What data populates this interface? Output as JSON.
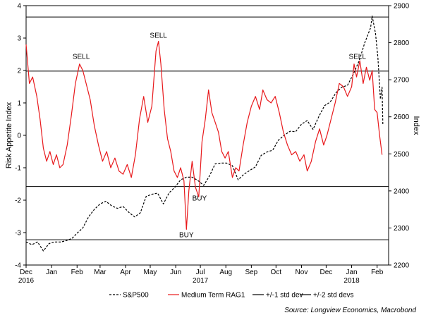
{
  "chart_data": {
    "type": "line",
    "title": "",
    "left_axis": {
      "label": "Risk Appetite Index",
      "min": -4,
      "max": 4,
      "ticks": [
        -4,
        -3,
        -2,
        -1,
        0,
        1,
        2,
        3,
        4
      ]
    },
    "right_axis": {
      "label": "Index",
      "min": 2200,
      "max": 2900,
      "ticks": [
        2200,
        2300,
        2400,
        2500,
        2600,
        2700,
        2800,
        2900
      ]
    },
    "x_axis": {
      "start": "2016-12-01",
      "end": "2018-02-15",
      "ticks": [
        {
          "date": "2016-12-01",
          "label": "Dec",
          "year": "2016"
        },
        {
          "date": "2017-01-01",
          "label": "Jan",
          "year": ""
        },
        {
          "date": "2017-02-01",
          "label": "Feb",
          "year": ""
        },
        {
          "date": "2017-03-01",
          "label": "Mar",
          "year": ""
        },
        {
          "date": "2017-04-01",
          "label": "Apr",
          "year": ""
        },
        {
          "date": "2017-05-01",
          "label": "May",
          "year": ""
        },
        {
          "date": "2017-06-01",
          "label": "Jun",
          "year": ""
        },
        {
          "date": "2017-07-01",
          "label": "Jul",
          "year": "2017"
        },
        {
          "date": "2017-08-01",
          "label": "Aug",
          "year": ""
        },
        {
          "date": "2017-09-01",
          "label": "Sep",
          "year": ""
        },
        {
          "date": "2017-10-01",
          "label": "Oct",
          "year": ""
        },
        {
          "date": "2017-11-01",
          "label": "Nov",
          "year": ""
        },
        {
          "date": "2017-12-01",
          "label": "Dec",
          "year": ""
        },
        {
          "date": "2018-01-01",
          "label": "Jan",
          "year": "2018"
        },
        {
          "date": "2018-02-01",
          "label": "Feb",
          "year": ""
        }
      ]
    },
    "reference_lines": [
      {
        "value": 3.65,
        "series": "+/-2 std devs"
      },
      {
        "value": 1.98,
        "series": "+/-1 std dev"
      },
      {
        "value": -1.58,
        "series": "+/-1 std dev"
      },
      {
        "value": -3.22,
        "series": "+/-2 std devs"
      }
    ],
    "series": [
      {
        "name": "S&P500",
        "axis": "right",
        "color": "#000000",
        "style": "dashed",
        "points": [
          [
            "2016-12-01",
            2262
          ],
          [
            "2016-12-08",
            2255
          ],
          [
            "2016-12-15",
            2262
          ],
          [
            "2016-12-22",
            2238
          ],
          [
            "2016-12-29",
            2258
          ],
          [
            "2017-01-05",
            2262
          ],
          [
            "2017-01-12",
            2262
          ],
          [
            "2017-01-19",
            2266
          ],
          [
            "2017-01-26",
            2272
          ],
          [
            "2017-02-01",
            2286
          ],
          [
            "2017-02-08",
            2300
          ],
          [
            "2017-02-15",
            2330
          ],
          [
            "2017-02-22",
            2350
          ],
          [
            "2017-03-01",
            2365
          ],
          [
            "2017-03-08",
            2372
          ],
          [
            "2017-03-15",
            2360
          ],
          [
            "2017-03-22",
            2353
          ],
          [
            "2017-03-29",
            2358
          ],
          [
            "2017-04-05",
            2342
          ],
          [
            "2017-04-12",
            2330
          ],
          [
            "2017-04-19",
            2341
          ],
          [
            "2017-04-26",
            2385
          ],
          [
            "2017-05-03",
            2391
          ],
          [
            "2017-05-10",
            2394
          ],
          [
            "2017-05-17",
            2365
          ],
          [
            "2017-05-24",
            2395
          ],
          [
            "2017-05-31",
            2410
          ],
          [
            "2017-06-07",
            2430
          ],
          [
            "2017-06-14",
            2437
          ],
          [
            "2017-06-21",
            2437
          ],
          [
            "2017-06-28",
            2428
          ],
          [
            "2017-07-05",
            2415
          ],
          [
            "2017-07-12",
            2440
          ],
          [
            "2017-07-19",
            2473
          ],
          [
            "2017-07-26",
            2475
          ],
          [
            "2017-08-02",
            2475
          ],
          [
            "2017-08-09",
            2468
          ],
          [
            "2017-08-16",
            2430
          ],
          [
            "2017-08-23",
            2445
          ],
          [
            "2017-08-30",
            2455
          ],
          [
            "2017-09-06",
            2465
          ],
          [
            "2017-09-13",
            2496
          ],
          [
            "2017-09-20",
            2505
          ],
          [
            "2017-09-27",
            2510
          ],
          [
            "2017-10-04",
            2537
          ],
          [
            "2017-10-11",
            2550
          ],
          [
            "2017-10-18",
            2561
          ],
          [
            "2017-10-25",
            2560
          ],
          [
            "2017-11-01",
            2580
          ],
          [
            "2017-11-08",
            2590
          ],
          [
            "2017-11-15",
            2566
          ],
          [
            "2017-11-22",
            2600
          ],
          [
            "2017-11-29",
            2630
          ],
          [
            "2017-12-06",
            2640
          ],
          [
            "2017-12-13",
            2665
          ],
          [
            "2017-12-20",
            2680
          ],
          [
            "2017-12-27",
            2685
          ],
          [
            "2018-01-03",
            2715
          ],
          [
            "2018-01-10",
            2750
          ],
          [
            "2018-01-17",
            2800
          ],
          [
            "2018-01-24",
            2840
          ],
          [
            "2018-01-26",
            2872
          ],
          [
            "2018-01-30",
            2825
          ],
          [
            "2018-02-02",
            2760
          ],
          [
            "2018-02-05",
            2648
          ],
          [
            "2018-02-07",
            2680
          ],
          [
            "2018-02-08",
            2580
          ]
        ]
      },
      {
        "name": "Medium Term RAG1",
        "axis": "left",
        "color": "#e8191c",
        "style": "solid",
        "points": [
          [
            "2016-12-01",
            2.8
          ],
          [
            "2016-12-05",
            1.6
          ],
          [
            "2016-12-09",
            1.8
          ],
          [
            "2016-12-14",
            1.2
          ],
          [
            "2016-12-18",
            0.5
          ],
          [
            "2016-12-22",
            -0.4
          ],
          [
            "2016-12-26",
            -0.8
          ],
          [
            "2016-12-30",
            -0.5
          ],
          [
            "2017-01-03",
            -0.9
          ],
          [
            "2017-01-07",
            -0.6
          ],
          [
            "2017-01-11",
            -1.0
          ],
          [
            "2017-01-15",
            -0.9
          ],
          [
            "2017-01-20",
            -0.3
          ],
          [
            "2017-01-25",
            0.6
          ],
          [
            "2017-01-30",
            1.6
          ],
          [
            "2017-02-04",
            2.2
          ],
          [
            "2017-02-08",
            2.0
          ],
          [
            "2017-02-12",
            1.6
          ],
          [
            "2017-02-17",
            1.1
          ],
          [
            "2017-02-22",
            0.3
          ],
          [
            "2017-02-27",
            -0.3
          ],
          [
            "2017-03-04",
            -0.8
          ],
          [
            "2017-03-09",
            -0.5
          ],
          [
            "2017-03-14",
            -1.0
          ],
          [
            "2017-03-19",
            -0.7
          ],
          [
            "2017-03-24",
            -1.1
          ],
          [
            "2017-03-29",
            -1.2
          ],
          [
            "2017-04-03",
            -0.9
          ],
          [
            "2017-04-08",
            -1.3
          ],
          [
            "2017-04-13",
            -0.6
          ],
          [
            "2017-04-18",
            0.5
          ],
          [
            "2017-04-23",
            1.2
          ],
          [
            "2017-04-28",
            0.4
          ],
          [
            "2017-05-03",
            0.9
          ],
          [
            "2017-05-08",
            2.6
          ],
          [
            "2017-05-11",
            2.9
          ],
          [
            "2017-05-14",
            2.2
          ],
          [
            "2017-05-18",
            0.8
          ],
          [
            "2017-05-22",
            -0.1
          ],
          [
            "2017-05-26",
            -0.5
          ],
          [
            "2017-05-30",
            -1.1
          ],
          [
            "2017-06-03",
            -1.3
          ],
          [
            "2017-06-07",
            -1.0
          ],
          [
            "2017-06-11",
            -1.4
          ],
          [
            "2017-06-14",
            -2.9
          ],
          [
            "2017-06-17",
            -1.7
          ],
          [
            "2017-06-21",
            -0.8
          ],
          [
            "2017-06-25",
            -1.6
          ],
          [
            "2017-06-29",
            -1.9
          ],
          [
            "2017-07-03",
            -0.2
          ],
          [
            "2017-07-07",
            0.5
          ],
          [
            "2017-07-11",
            1.4
          ],
          [
            "2017-07-15",
            0.7
          ],
          [
            "2017-07-19",
            0.4
          ],
          [
            "2017-07-23",
            0.1
          ],
          [
            "2017-07-27",
            -0.5
          ],
          [
            "2017-07-31",
            -0.7
          ],
          [
            "2017-08-04",
            -0.5
          ],
          [
            "2017-08-09",
            -1.3
          ],
          [
            "2017-08-13",
            -1.0
          ],
          [
            "2017-08-17",
            -1.1
          ],
          [
            "2017-08-22",
            -0.3
          ],
          [
            "2017-08-27",
            0.4
          ],
          [
            "2017-09-01",
            0.9
          ],
          [
            "2017-09-06",
            1.2
          ],
          [
            "2017-09-11",
            0.8
          ],
          [
            "2017-09-15",
            1.4
          ],
          [
            "2017-09-20",
            1.1
          ],
          [
            "2017-09-25",
            1.0
          ],
          [
            "2017-09-30",
            1.2
          ],
          [
            "2017-10-05",
            0.7
          ],
          [
            "2017-10-10",
            0.1
          ],
          [
            "2017-10-15",
            -0.3
          ],
          [
            "2017-10-20",
            -0.6
          ],
          [
            "2017-10-25",
            -0.5
          ],
          [
            "2017-10-30",
            -0.8
          ],
          [
            "2017-11-04",
            -0.6
          ],
          [
            "2017-11-08",
            -1.1
          ],
          [
            "2017-11-13",
            -0.8
          ],
          [
            "2017-11-18",
            -0.2
          ],
          [
            "2017-11-23",
            0.2
          ],
          [
            "2017-11-28",
            -0.3
          ],
          [
            "2017-12-02",
            0.0
          ],
          [
            "2017-12-07",
            0.5
          ],
          [
            "2017-12-12",
            1.0
          ],
          [
            "2017-12-17",
            1.6
          ],
          [
            "2017-12-22",
            1.5
          ],
          [
            "2017-12-27",
            1.2
          ],
          [
            "2018-01-01",
            1.5
          ],
          [
            "2018-01-04",
            2.2
          ],
          [
            "2018-01-07",
            1.8
          ],
          [
            "2018-01-11",
            2.3
          ],
          [
            "2018-01-15",
            1.6
          ],
          [
            "2018-01-19",
            2.1
          ],
          [
            "2018-01-23",
            1.7
          ],
          [
            "2018-01-26",
            2.0
          ],
          [
            "2018-01-29",
            0.8
          ],
          [
            "2018-02-01",
            0.7
          ],
          [
            "2018-02-04",
            0.0
          ],
          [
            "2018-02-07",
            -0.6
          ]
        ]
      }
    ],
    "annotations": [
      {
        "text": "SELL",
        "date": "2017-02-06",
        "value": 2.42
      },
      {
        "text": "SELL",
        "date": "2017-05-11",
        "value": 3.08
      },
      {
        "text": "SELL",
        "date": "2018-01-08",
        "value": 2.42
      },
      {
        "text": "BUY",
        "date": "2017-06-30",
        "value": -1.95
      },
      {
        "text": "BUY",
        "date": "2017-06-14",
        "value": -3.08
      }
    ],
    "legend": {
      "placement": "bottom",
      "items": [
        {
          "label": "S&P500",
          "color": "#000000",
          "style": "dashed"
        },
        {
          "label": "Medium Term RAG1",
          "color": "#e8191c",
          "style": "solid"
        },
        {
          "label": "+/-1 std dev",
          "color": "#000000",
          "style": "solid"
        },
        {
          "label": "+/-2 std devs",
          "color": "#000000",
          "style": "solid"
        }
      ]
    },
    "source": "Source: Longview Economics, Macrobond"
  }
}
